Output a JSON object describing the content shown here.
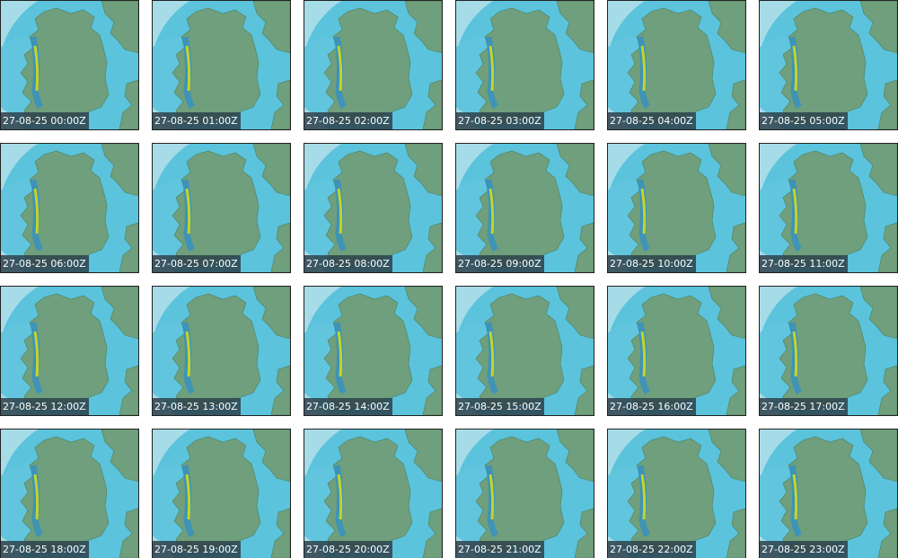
{
  "frames": [
    {
      "label": "27-08-25 00:00Z"
    },
    {
      "label": "27-08-25 01:00Z"
    },
    {
      "label": "27-08-25 02:00Z"
    },
    {
      "label": "27-08-25 03:00Z"
    },
    {
      "label": "27-08-25 04:00Z"
    },
    {
      "label": "27-08-25 05:00Z"
    },
    {
      "label": "27-08-25 06:00Z"
    },
    {
      "label": "27-08-25 07:00Z"
    },
    {
      "label": "27-08-25 08:00Z"
    },
    {
      "label": "27-08-25 09:00Z"
    },
    {
      "label": "27-08-25 10:00Z"
    },
    {
      "label": "27-08-25 11:00Z"
    },
    {
      "label": "27-08-25 12:00Z"
    },
    {
      "label": "27-08-25 13:00Z"
    },
    {
      "label": "27-08-25 14:00Z"
    },
    {
      "label": "27-08-25 15:00Z"
    },
    {
      "label": "27-08-25 16:00Z"
    },
    {
      "label": "27-08-25 17:00Z"
    },
    {
      "label": "27-08-25 18:00Z"
    },
    {
      "label": "27-08-25 19:00Z"
    },
    {
      "label": "27-08-25 20:00Z"
    },
    {
      "label": "27-08-25 21:00Z"
    },
    {
      "label": "27-08-25 22:00Z"
    },
    {
      "label": "27-08-25 23:00Z"
    }
  ]
}
